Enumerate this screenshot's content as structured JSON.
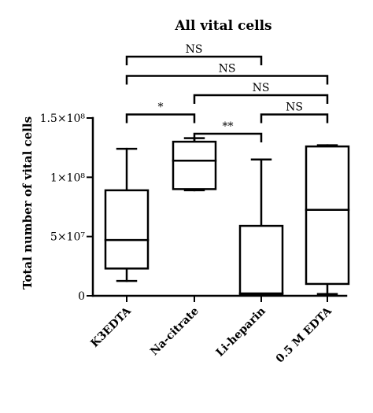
{
  "chart_data": {
    "type": "box",
    "title": "All vital cells",
    "ylabel": "Total number of vital cells",
    "xlabel": "",
    "ylim": [
      0,
      150000000
    ],
    "yticks": [
      {
        "value": 0,
        "label": "0"
      },
      {
        "value": 50000000,
        "label": "5×10⁷"
      },
      {
        "value": 100000000,
        "label": "1×10⁸"
      },
      {
        "value": 150000000,
        "label": "1.5×10⁸"
      }
    ],
    "categories": [
      "K3EDTA",
      "Na-citrate",
      "Li-heparin",
      "0.5 M EDTA"
    ],
    "boxes": [
      {
        "category": "K3EDTA",
        "min": 12500000,
        "q1": 23000000,
        "median": 47000000,
        "q3": 89000000,
        "max": 124000000
      },
      {
        "category": "Na-citrate",
        "min": 89000000,
        "q1": 90000000,
        "median": 114000000,
        "q3": 130000000,
        "max": 133000000
      },
      {
        "category": "Li-heparin",
        "min": 1000000,
        "q1": 1500000,
        "median": 2000000,
        "q3": 59000000,
        "max": 115000000
      },
      {
        "category": "0.5 M EDTA",
        "min": 1500000,
        "q1": 10000000,
        "median": 72500000,
        "q3": 126000000,
        "max": 127000000
      }
    ],
    "comparisons": [
      {
        "from": 0,
        "to": 2,
        "label": "NS",
        "level": 5
      },
      {
        "from": 0,
        "to": 3,
        "label": "NS",
        "level": 4
      },
      {
        "from": 1,
        "to": 3,
        "label": "NS",
        "level": 3
      },
      {
        "from": 2,
        "to": 3,
        "label": "NS",
        "level": 2
      },
      {
        "from": 0,
        "to": 1,
        "label": "*",
        "level": 2
      },
      {
        "from": 1,
        "to": 2,
        "label": "**",
        "level": 1
      }
    ]
  }
}
